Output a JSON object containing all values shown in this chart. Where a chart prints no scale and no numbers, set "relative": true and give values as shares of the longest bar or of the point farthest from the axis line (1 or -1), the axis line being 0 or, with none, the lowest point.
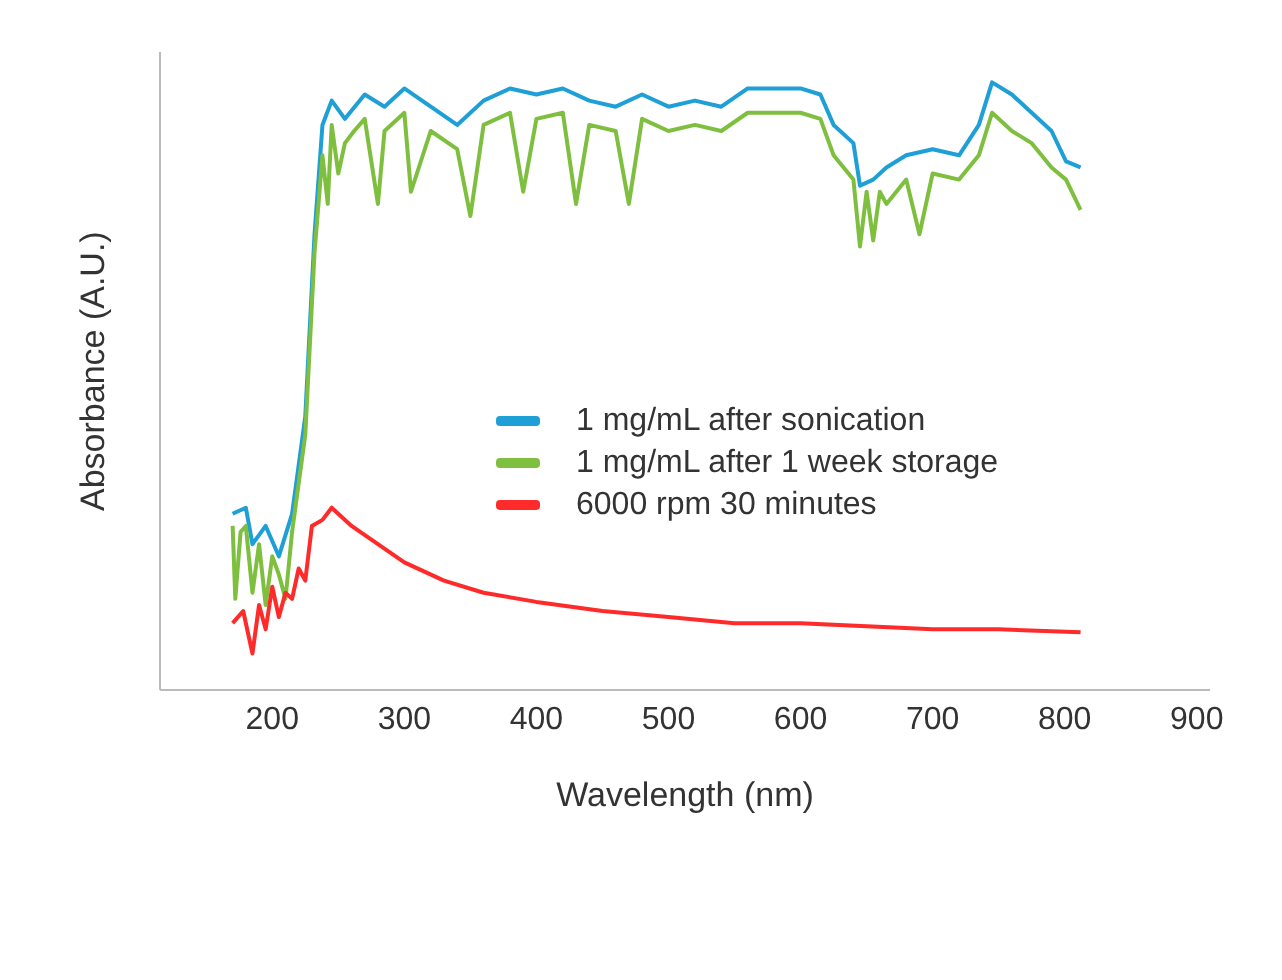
{
  "chart_data": {
    "type": "line",
    "xlabel": "Wavelength (nm)",
    "ylabel": "Absorbance (A.U.)",
    "relative": true,
    "xlim": [
      115,
      910
    ],
    "xticks": [
      200,
      300,
      400,
      500,
      600,
      700,
      800,
      900
    ],
    "legend": "right",
    "marker": "none",
    "line_style": "solid",
    "series": [
      {
        "name": "1 mg/mL after sonication",
        "color": "#1e9fd6",
        "x": [
          170,
          180,
          185,
          195,
          205,
          215,
          225,
          232,
          238,
          245,
          255,
          270,
          285,
          300,
          320,
          340,
          360,
          380,
          400,
          420,
          440,
          460,
          480,
          500,
          520,
          540,
          560,
          580,
          600,
          615,
          625,
          640,
          645,
          655,
          665,
          680,
          700,
          720,
          735,
          745,
          760,
          775,
          790,
          801,
          812
        ],
        "values": [
          0.29,
          0.3,
          0.24,
          0.27,
          0.22,
          0.29,
          0.45,
          0.75,
          0.93,
          0.97,
          0.94,
          0.98,
          0.96,
          0.99,
          0.96,
          0.93,
          0.97,
          0.99,
          0.98,
          0.99,
          0.97,
          0.96,
          0.98,
          0.96,
          0.97,
          0.96,
          0.99,
          0.99,
          0.99,
          0.98,
          0.93,
          0.9,
          0.83,
          0.84,
          0.86,
          0.88,
          0.89,
          0.88,
          0.93,
          1.0,
          0.98,
          0.95,
          0.92,
          0.87,
          0.86
        ]
      },
      {
        "name": "1 mg/mL after 1 week storage",
        "color": "#7fbf3f",
        "x": [
          170,
          172,
          176,
          180,
          185,
          190,
          195,
          200,
          205,
          210,
          215,
          225,
          232,
          238,
          242,
          245,
          250,
          255,
          262,
          270,
          280,
          285,
          300,
          305,
          320,
          340,
          350,
          360,
          380,
          390,
          400,
          420,
          430,
          440,
          460,
          470,
          480,
          500,
          520,
          540,
          560,
          580,
          600,
          615,
          625,
          640,
          645,
          650,
          655,
          660,
          665,
          680,
          690,
          700,
          720,
          735,
          745,
          760,
          775,
          790,
          801,
          812
        ],
        "values": [
          0.27,
          0.15,
          0.26,
          0.27,
          0.16,
          0.24,
          0.14,
          0.22,
          0.19,
          0.15,
          0.26,
          0.42,
          0.72,
          0.88,
          0.8,
          0.93,
          0.85,
          0.9,
          0.92,
          0.94,
          0.8,
          0.92,
          0.95,
          0.82,
          0.92,
          0.89,
          0.78,
          0.93,
          0.95,
          0.82,
          0.94,
          0.95,
          0.8,
          0.93,
          0.92,
          0.8,
          0.94,
          0.92,
          0.93,
          0.92,
          0.95,
          0.95,
          0.95,
          0.94,
          0.88,
          0.84,
          0.73,
          0.82,
          0.74,
          0.82,
          0.8,
          0.84,
          0.75,
          0.85,
          0.84,
          0.88,
          0.95,
          0.92,
          0.9,
          0.86,
          0.84,
          0.79
        ]
      },
      {
        "name": "6000 rpm 30 minutes",
        "color": "#ff2a2a",
        "x": [
          170,
          178,
          185,
          190,
          195,
          200,
          205,
          210,
          215,
          220,
          225,
          230,
          238,
          245,
          260,
          280,
          300,
          330,
          360,
          400,
          450,
          500,
          550,
          600,
          650,
          700,
          750,
          812
        ],
        "values": [
          0.11,
          0.13,
          0.06,
          0.14,
          0.1,
          0.17,
          0.12,
          0.16,
          0.15,
          0.2,
          0.18,
          0.27,
          0.28,
          0.3,
          0.27,
          0.24,
          0.21,
          0.18,
          0.16,
          0.145,
          0.13,
          0.12,
          0.11,
          0.11,
          0.105,
          0.1,
          0.1,
          0.095
        ]
      }
    ]
  }
}
